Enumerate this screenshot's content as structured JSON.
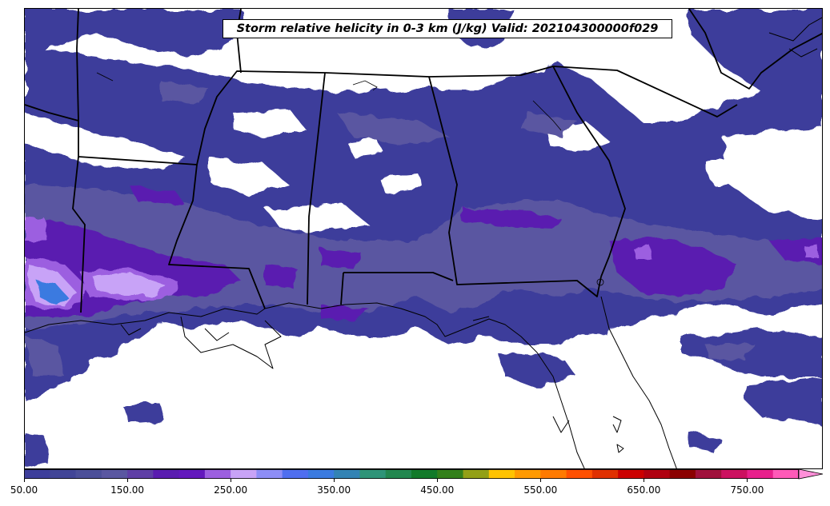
{
  "title": "Storm relative helicity in 0-3 km (J/kg) Valid: 202104300000f029",
  "colorbar": {
    "min": 50,
    "max": 800,
    "step": 25,
    "extend": "max",
    "extend_color": "#ff8fd8",
    "colors": [
      "#3d3e9b",
      "#414597",
      "#4b4f99",
      "#5a57a1",
      "#5f3fa6",
      "#5a1cb0",
      "#6318bd",
      "#9c5fe0",
      "#c8a3f7",
      "#8d8df7",
      "#4f6ef0",
      "#3a7ae0",
      "#3383b4",
      "#2e9478",
      "#22874f",
      "#127a2a",
      "#33801a",
      "#93a016",
      "#ffc300",
      "#ff9a00",
      "#ff7a00",
      "#ff5000",
      "#e03000",
      "#cc0000",
      "#b00010",
      "#8b0000",
      "#a0103c",
      "#cc1060",
      "#e8208c",
      "#ff5ab8"
    ],
    "tick_labels": [
      "50.00",
      "150.00",
      "250.00",
      "350.00",
      "450.00",
      "550.00",
      "650.00",
      "750.00"
    ],
    "tick_values": [
      50,
      150,
      250,
      350,
      450,
      550,
      650,
      750
    ]
  },
  "map": {
    "field": "Storm relative helicity",
    "layer": "0-3 km",
    "units": "J/kg",
    "fill_colors": {
      "level_50": "#3d3e9b",
      "level_100": "#5a57a1",
      "level_150": "#5a1cb0",
      "level_225": "#9c5fe0",
      "level_250": "#c8a3f7",
      "level_300": "#3a7ae0"
    },
    "boundary_color": "#000000"
  }
}
